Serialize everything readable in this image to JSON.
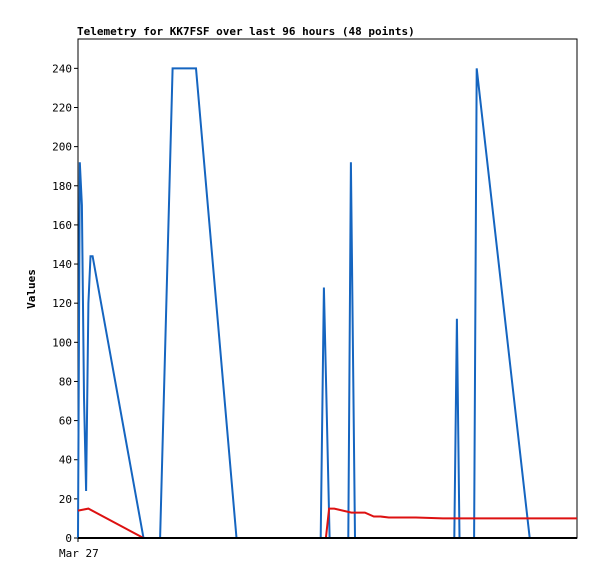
{
  "chart_data": {
    "type": "line",
    "title": "Telemetry for KK7FSF over last 96 hours (48 points)",
    "xlabel": "",
    "ylabel": "Values",
    "x_tick_labels": [
      "Mar 27"
    ],
    "y_ticks": [
      0,
      20,
      40,
      60,
      80,
      100,
      120,
      140,
      160,
      180,
      200,
      220,
      240
    ],
    "ylim": [
      0,
      255
    ],
    "xlim": [
      0,
      96
    ],
    "grid": false,
    "legend": "none",
    "series": [
      {
        "color": "#1565c0",
        "x": [
          0.0,
          0.35,
          0.75,
          1.15,
          1.55,
          2.0,
          2.4,
          2.8,
          12.6,
          14.8,
          15.8,
          18.2,
          22.7,
          30.5,
          46.7,
          47.3,
          48.4,
          52.0,
          52.5,
          53.3,
          54.3,
          72.4,
          72.9,
          73.4,
          76.2,
          76.7,
          86.9
        ],
        "y": [
          0,
          192,
          170,
          72,
          24,
          120,
          144,
          144,
          0,
          0,
          0,
          240,
          240,
          0,
          0,
          128,
          0,
          0,
          192,
          0,
          0,
          0,
          112,
          0,
          0,
          240,
          0
        ]
      },
      {
        "color": "#dd1111",
        "x": [
          0.0,
          2.0,
          12.6,
          16.0,
          47.2,
          47.7,
          48.3,
          49.3,
          52.6,
          55.2,
          56.9,
          58.2,
          59.8,
          65.0,
          70.2,
          96.0
        ],
        "y": [
          14,
          15,
          0,
          0,
          0,
          0,
          15,
          15,
          13,
          13,
          11,
          11,
          10.5,
          10.5,
          10,
          10
        ]
      }
    ],
    "zero_line_color": "#000000"
  }
}
